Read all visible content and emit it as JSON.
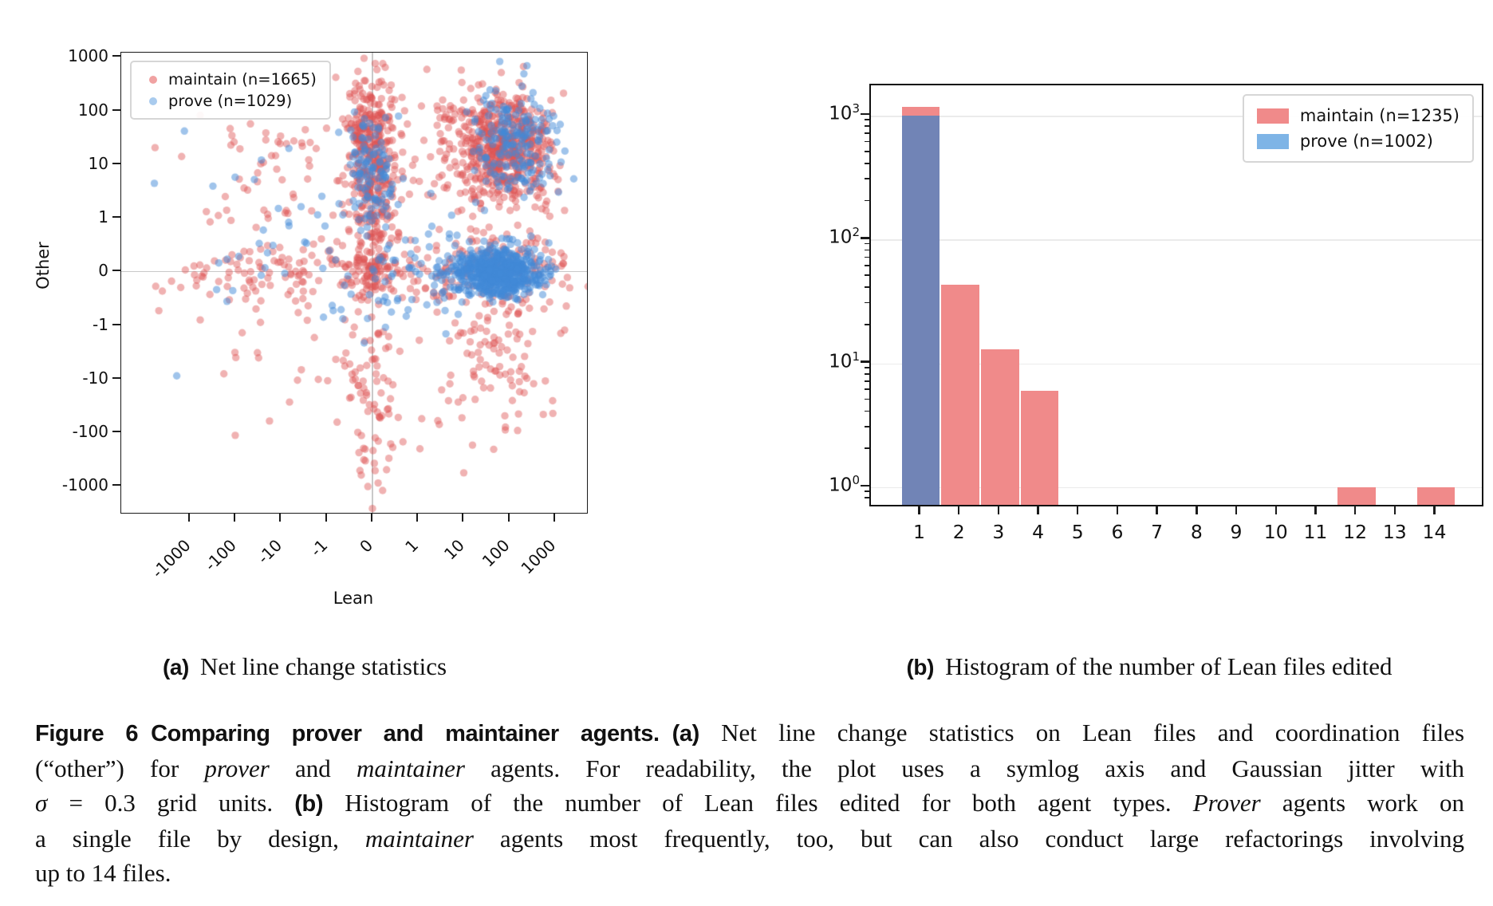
{
  "colors": {
    "scatter_maintain": "rgba(222,84,84,0.45)",
    "scatter_prove": "rgba(65,137,215,0.5)",
    "legend_dot_maintain": "#f0a2a2",
    "legend_dot_prove": "#a9cbee",
    "hist_maintain": "#f08a8a",
    "hist_prove_legend": "#7eb4e6",
    "hist_prove_overlap": "#7184b6",
    "gridline": "#ebebeb",
    "zero_line": "#c9c9c9",
    "spine": "#1a1a1a"
  },
  "chart_data": [
    {
      "type": "scatter",
      "xlabel": "Lean",
      "ylabel": "Other",
      "xscale": "symlog",
      "yscale": "symlog",
      "x_ticks": [
        -1000,
        -100,
        -10,
        -1,
        0,
        1,
        10,
        100,
        1000
      ],
      "y_ticks": [
        1000,
        100,
        10,
        1,
        0,
        -1,
        -10,
        -100,
        -1000
      ],
      "xlim_units": [
        -5.5,
        4.7
      ],
      "ylim_units": [
        -4.5,
        4.08
      ],
      "grid": "zero lines only",
      "legend_position": "upper left",
      "jitter_note": "Gaussian jitter sigma = 0.3 grid units",
      "cluster_format": [
        "center_x_units",
        "center_y_units",
        "sigma_x",
        "sigma_y",
        "count"
      ],
      "series": [
        {
          "name": "maintain (n=1665)",
          "n": 1665,
          "clusters": [
            [
              0,
              2.3,
              0.28,
              0.68,
              330
            ],
            [
              0.05,
              0.85,
              0.3,
              0.45,
              80
            ],
            [
              2.95,
              2.25,
              0.52,
              0.52,
              510
            ],
            [
              2.0,
              2.3,
              0.5,
              0.6,
              95
            ],
            [
              -2.4,
              1.7,
              1.1,
              0.8,
              70
            ],
            [
              -1.8,
              0,
              1.4,
              0.28,
              100
            ],
            [
              0,
              0,
              0.35,
              0.3,
              80
            ],
            [
              1.1,
              0.05,
              0.8,
              0.3,
              60
            ],
            [
              3.0,
              0.1,
              0.65,
              0.35,
              110
            ],
            [
              0,
              -2.2,
              0.35,
              0.9,
              70
            ],
            [
              2.7,
              -1.5,
              0.8,
              0.85,
              120
            ],
            [
              -2.0,
              -1.6,
              1.0,
              0.8,
              25
            ],
            [
              0,
              -3.7,
              0.3,
              0.5,
              15
            ]
          ]
        },
        {
          "name": "prove (n=1029)",
          "n": 1029,
          "clusters": [
            [
              2.75,
              0,
              0.5,
              0.22,
              600
            ],
            [
              3.1,
              2.4,
              0.45,
              0.5,
              185
            ],
            [
              0,
              1.9,
              0.28,
              0.55,
              105
            ],
            [
              1.7,
              0.1,
              0.8,
              0.4,
              55
            ],
            [
              -1.5,
              0.7,
              1.6,
              0.9,
              50
            ],
            [
              0.3,
              -0.5,
              1.0,
              0.5,
              34
            ]
          ]
        }
      ]
    },
    {
      "type": "histogram",
      "categories": [
        1,
        2,
        3,
        4,
        5,
        6,
        7,
        8,
        9,
        10,
        11,
        12,
        13,
        14
      ],
      "yscale": "log",
      "y_tick_exponents": [
        0,
        1,
        2,
        3
      ],
      "ylim": [
        0.72,
        1740
      ],
      "legend_position": "upper right",
      "series": [
        {
          "name": "maintain (n=1235)",
          "n": 1235,
          "values": [
            1171,
            43,
            13,
            6,
            0,
            0,
            0,
            0,
            0,
            0,
            0,
            1,
            0,
            1
          ]
        },
        {
          "name": "prove (n=1002)",
          "n": 1002,
          "values": [
            1002,
            0,
            0,
            0,
            0,
            0,
            0,
            0,
            0,
            0,
            0,
            0,
            0,
            0
          ]
        }
      ]
    }
  ],
  "subcaptions": [
    {
      "label": "(a)",
      "text": "Net line change statistics"
    },
    {
      "label": "(b)",
      "text": "Histogram of the number of Lean files edited"
    }
  ],
  "caption": {
    "lines": [
      [
        {
          "t": "Figure 6",
          "s": "b"
        },
        {
          "t": "gap",
          "s": "gap"
        },
        {
          "t": "Comparing prover and maintainer agents.",
          "s": "b"
        },
        {
          "t": "gap",
          "s": "gap"
        },
        {
          "t": "(a)",
          "s": "b"
        },
        {
          "t": " Net line change statistics on Lean files and coordination files",
          "s": "r"
        }
      ],
      [
        {
          "t": "(“other”) for ",
          "s": "r"
        },
        {
          "t": "prover",
          "s": "i"
        },
        {
          "t": " and ",
          "s": "r"
        },
        {
          "t": "maintainer",
          "s": "i"
        },
        {
          "t": " agents. For readability, the plot uses a symlog axis and Gaussian jitter with",
          "s": "r"
        }
      ],
      [
        {
          "t": "σ",
          "s": "i"
        },
        {
          "t": " = 0.3 grid units. ",
          "s": "r"
        },
        {
          "t": "(b)",
          "s": "b"
        },
        {
          "t": " Histogram of the number of Lean files edited for both agent types. ",
          "s": "r"
        },
        {
          "t": "Prover",
          "s": "i"
        },
        {
          "t": " agents work on",
          "s": "r"
        }
      ],
      [
        {
          "t": "a single file by design, ",
          "s": "r"
        },
        {
          "t": "maintainer",
          "s": "i"
        },
        {
          "t": " agents most frequently, too, but can also conduct large refactorings involving",
          "s": "r"
        }
      ],
      [
        {
          "t": "up to 14 files.",
          "s": "r"
        }
      ]
    ]
  }
}
